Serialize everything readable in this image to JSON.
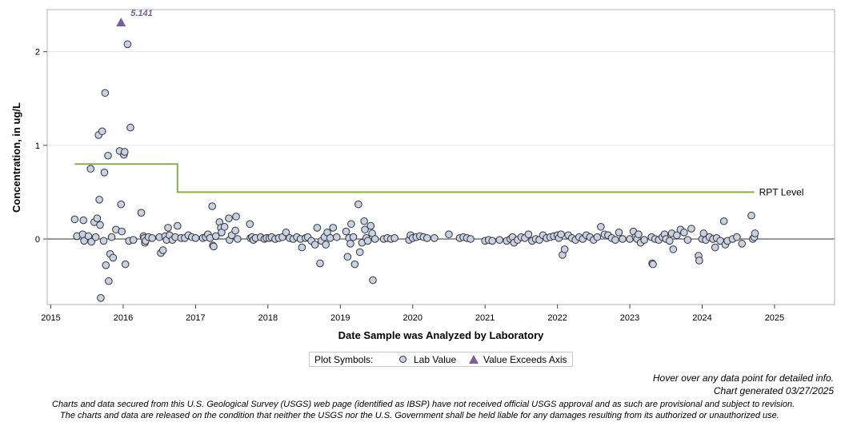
{
  "chart_data": {
    "type": "scatter",
    "xlabel": "Date Sample was Analyzed by Laboratory",
    "ylabel": "Concentration, in ug/L",
    "xlim": [
      2014.95,
      2025.83
    ],
    "ylim": [
      -0.7,
      2.45
    ],
    "x_ticks": [
      "2015",
      "2016",
      "2017",
      "2018",
      "2019",
      "2020",
      "2021",
      "2022",
      "2023",
      "2024",
      "2025"
    ],
    "y_ticks": [
      "0",
      "1",
      "2"
    ],
    "grid": "horizontal",
    "zero_line": true,
    "rpt_level": {
      "label": "RPT Level",
      "segments": [
        {
          "x": [
            2015.33,
            2016.75
          ],
          "y": 0.8
        },
        {
          "x": [
            2016.75,
            2024.72
          ],
          "y": 0.5
        }
      ],
      "color": "#8aad4a"
    },
    "exceeds_axis": [
      {
        "x": 2015.97,
        "y": 5.141,
        "label": "5.141"
      }
    ],
    "series": [
      {
        "name": "Lab Value",
        "color": "#c8d2e4",
        "points": [
          [
            2015.33,
            0.21
          ],
          [
            2015.36,
            0.03
          ],
          [
            2015.44,
            0.05
          ],
          [
            2015.45,
            0.2
          ],
          [
            2015.46,
            -0.02
          ],
          [
            2015.52,
            0.03
          ],
          [
            2015.55,
            0.75
          ],
          [
            2015.56,
            -0.03
          ],
          [
            2015.6,
            0.18
          ],
          [
            2015.62,
            0.02
          ],
          [
            2015.64,
            0.22
          ],
          [
            2015.66,
            1.11
          ],
          [
            2015.67,
            0.42
          ],
          [
            2015.68,
            0.15
          ],
          [
            2015.69,
            -0.63
          ],
          [
            2015.71,
            1.15
          ],
          [
            2015.73,
            -0.02
          ],
          [
            2015.74,
            0.71
          ],
          [
            2015.75,
            1.56
          ],
          [
            2015.76,
            -0.28
          ],
          [
            2015.79,
            0.89
          ],
          [
            2015.8,
            -0.45
          ],
          [
            2015.82,
            -0.16
          ],
          [
            2015.84,
            0.02
          ],
          [
            2015.86,
            -0.2
          ],
          [
            2015.9,
            0.1
          ],
          [
            2015.95,
            0.94
          ],
          [
            2015.97,
            0.37
          ],
          [
            2015.98,
            0.08
          ],
          [
            2016.01,
            0.9
          ],
          [
            2016.02,
            0.93
          ],
          [
            2016.03,
            -0.27
          ],
          [
            2016.06,
            2.08
          ],
          [
            2016.08,
            -0.02
          ],
          [
            2016.1,
            1.19
          ],
          [
            2016.14,
            -0.01
          ],
          [
            2016.25,
            0.28
          ],
          [
            2016.28,
            0.03
          ],
          [
            2016.29,
            0.01
          ],
          [
            2016.3,
            -0.04
          ],
          [
            2016.31,
            -0.02
          ],
          [
            2016.35,
            0.02
          ],
          [
            2016.4,
            0.01
          ],
          [
            2016.5,
            0.02
          ],
          [
            2016.52,
            -0.15
          ],
          [
            2016.55,
            -0.12
          ],
          [
            2016.58,
            0.03
          ],
          [
            2016.6,
            -0.01
          ],
          [
            2016.62,
            0.12
          ],
          [
            2016.64,
            0.04
          ],
          [
            2016.68,
            -0.01
          ],
          [
            2016.72,
            0.02
          ],
          [
            2016.75,
            0.14
          ],
          [
            2016.8,
            0.01
          ],
          [
            2016.85,
            0.01
          ],
          [
            2016.9,
            0.04
          ],
          [
            2016.95,
            0.02
          ],
          [
            2017.0,
            0.01
          ],
          [
            2017.1,
            0.01
          ],
          [
            2017.14,
            0.02
          ],
          [
            2017.17,
            0.05
          ],
          [
            2017.2,
            0.01
          ],
          [
            2017.23,
            0.35
          ],
          [
            2017.24,
            -0.07
          ],
          [
            2017.25,
            -0.08
          ],
          [
            2017.28,
            0.03
          ],
          [
            2017.33,
            0.18
          ],
          [
            2017.35,
            0.12
          ],
          [
            2017.36,
            0.07
          ],
          [
            2017.4,
            0.13
          ],
          [
            2017.46,
            0.22
          ],
          [
            2017.47,
            -0.01
          ],
          [
            2017.5,
            0.04
          ],
          [
            2017.55,
            0.09
          ],
          [
            2017.56,
            0.24
          ],
          [
            2017.58,
            0.0
          ],
          [
            2017.75,
            0.16
          ],
          [
            2017.76,
            0.01
          ],
          [
            2017.78,
            0.02
          ],
          [
            2017.8,
            -0.01
          ],
          [
            2017.83,
            0.01
          ],
          [
            2017.9,
            0.02
          ],
          [
            2017.95,
            0.0
          ],
          [
            2017.98,
            0.01
          ],
          [
            2018.02,
            0.01
          ],
          [
            2018.05,
            0.02
          ],
          [
            2018.1,
            0.0
          ],
          [
            2018.15,
            0.01
          ],
          [
            2018.2,
            0.02
          ],
          [
            2018.25,
            0.07
          ],
          [
            2018.3,
            0.01
          ],
          [
            2018.35,
            0.0
          ],
          [
            2018.4,
            0.02
          ],
          [
            2018.45,
            0.0
          ],
          [
            2018.47,
            -0.09
          ],
          [
            2018.52,
            0.01
          ],
          [
            2018.55,
            0.02
          ],
          [
            2018.6,
            -0.02
          ],
          [
            2018.65,
            -0.06
          ],
          [
            2018.68,
            0.12
          ],
          [
            2018.72,
            -0.26
          ],
          [
            2018.74,
            -0.02
          ],
          [
            2018.78,
            0.02
          ],
          [
            2018.8,
            -0.06
          ],
          [
            2018.82,
            0.07
          ],
          [
            2018.86,
            0.01
          ],
          [
            2018.9,
            0.12
          ],
          [
            2018.95,
            0.02
          ],
          [
            2019.08,
            0.08
          ],
          [
            2019.1,
            -0.19
          ],
          [
            2019.12,
            0.01
          ],
          [
            2019.14,
            -0.05
          ],
          [
            2019.15,
            0.16
          ],
          [
            2019.18,
            0.02
          ],
          [
            2019.2,
            -0.27
          ],
          [
            2019.25,
            0.37
          ],
          [
            2019.27,
            -0.14
          ],
          [
            2019.3,
            -0.04
          ],
          [
            2019.33,
            0.19
          ],
          [
            2019.34,
            0.1
          ],
          [
            2019.36,
            0.01
          ],
          [
            2019.38,
            -0.02
          ],
          [
            2019.42,
            0.14
          ],
          [
            2019.44,
            0.06
          ],
          [
            2019.45,
            -0.44
          ],
          [
            2019.48,
            0.0
          ],
          [
            2019.6,
            0.0
          ],
          [
            2019.65,
            0.01
          ],
          [
            2019.7,
            0.0
          ],
          [
            2019.75,
            0.01
          ],
          [
            2019.95,
            -0.01
          ],
          [
            2019.97,
            0.04
          ],
          [
            2020.0,
            0.01
          ],
          [
            2020.05,
            0.02
          ],
          [
            2020.1,
            0.03
          ],
          [
            2020.15,
            0.02
          ],
          [
            2020.2,
            0.01
          ],
          [
            2020.3,
            0.01
          ],
          [
            2020.5,
            0.05
          ],
          [
            2020.65,
            0.01
          ],
          [
            2020.7,
            0.02
          ],
          [
            2020.75,
            0.01
          ],
          [
            2020.8,
            0.0
          ],
          [
            2021.0,
            -0.02
          ],
          [
            2021.05,
            -0.01
          ],
          [
            2021.1,
            -0.02
          ],
          [
            2021.2,
            -0.01
          ],
          [
            2021.3,
            -0.02
          ],
          [
            2021.35,
            0.0
          ],
          [
            2021.38,
            0.02
          ],
          [
            2021.4,
            -0.04
          ],
          [
            2021.45,
            -0.01
          ],
          [
            2021.5,
            0.02
          ],
          [
            2021.55,
            0.01
          ],
          [
            2021.6,
            0.05
          ],
          [
            2021.65,
            -0.02
          ],
          [
            2021.7,
            0.0
          ],
          [
            2021.75,
            -0.01
          ],
          [
            2021.8,
            0.04
          ],
          [
            2021.85,
            0.01
          ],
          [
            2021.9,
            0.02
          ],
          [
            2021.95,
            0.03
          ],
          [
            2022.0,
            0.04
          ],
          [
            2022.02,
            0.01
          ],
          [
            2022.05,
            0.05
          ],
          [
            2022.07,
            -0.17
          ],
          [
            2022.1,
            -0.11
          ],
          [
            2022.15,
            0.04
          ],
          [
            2022.2,
            0.01
          ],
          [
            2022.25,
            -0.01
          ],
          [
            2022.3,
            0.02
          ],
          [
            2022.35,
            0.0
          ],
          [
            2022.4,
            0.04
          ],
          [
            2022.45,
            0.02
          ],
          [
            2022.5,
            -0.01
          ],
          [
            2022.55,
            0.02
          ],
          [
            2022.6,
            0.13
          ],
          [
            2022.65,
            0.05
          ],
          [
            2022.7,
            0.04
          ],
          [
            2022.75,
            0.01
          ],
          [
            2022.8,
            -0.01
          ],
          [
            2022.85,
            0.07
          ],
          [
            2022.9,
            0.0
          ],
          [
            2023.0,
            0.0
          ],
          [
            2023.05,
            0.08
          ],
          [
            2023.08,
            0.02
          ],
          [
            2023.1,
            0.0
          ],
          [
            2023.12,
            0.05
          ],
          [
            2023.15,
            -0.04
          ],
          [
            2023.2,
            -0.01
          ],
          [
            2023.3,
            0.02
          ],
          [
            2023.31,
            -0.26
          ],
          [
            2023.32,
            -0.27
          ],
          [
            2023.35,
            0.0
          ],
          [
            2023.4,
            -0.01
          ],
          [
            2023.45,
            0.02
          ],
          [
            2023.48,
            0.05
          ],
          [
            2023.5,
            0.0
          ],
          [
            2023.55,
            -0.02
          ],
          [
            2023.58,
            0.06
          ],
          [
            2023.6,
            -0.11
          ],
          [
            2023.65,
            0.04
          ],
          [
            2023.7,
            0.1
          ],
          [
            2023.75,
            0.07
          ],
          [
            2023.8,
            -0.01
          ],
          [
            2023.85,
            0.11
          ],
          [
            2023.95,
            -0.18
          ],
          [
            2023.96,
            -0.23
          ],
          [
            2024.0,
            0.0
          ],
          [
            2024.02,
            0.06
          ],
          [
            2024.05,
            -0.01
          ],
          [
            2024.1,
            0.02
          ],
          [
            2024.15,
            0.0
          ],
          [
            2024.18,
            -0.09
          ],
          [
            2024.2,
            0.01
          ],
          [
            2024.25,
            -0.02
          ],
          [
            2024.3,
            0.19
          ],
          [
            2024.32,
            -0.06
          ],
          [
            2024.35,
            -0.02
          ],
          [
            2024.42,
            0.0
          ],
          [
            2024.48,
            0.02
          ],
          [
            2024.55,
            -0.05
          ],
          [
            2024.68,
            0.25
          ],
          [
            2024.7,
            0.0
          ],
          [
            2024.72,
            0.02
          ],
          [
            2024.73,
            0.06
          ]
        ]
      }
    ]
  },
  "legend": {
    "title": "Plot Symbols:",
    "items": [
      {
        "label": "Lab Value",
        "symbol": "circle"
      },
      {
        "label": "Value Exceeds Axis",
        "symbol": "triangle"
      }
    ]
  },
  "notes": {
    "hover": "Hover over any data point for detailed info.",
    "generated": "Chart generated 03/27/2025",
    "disclaimer_1": "Charts and data secured from this U.S. Geological Survey (USGS) web page (identified as IBSP) have not received official USGS approval and as such are provisional and subject to revision.",
    "disclaimer_2": "The charts and data are released on the condition that neither the USGS nor the U.S. Government shall be held liable for any damages resulting from its authorized or unauthorized use."
  },
  "colors": {
    "marker_fill": "#c8d2e4",
    "exceeds_marker": "#7a5ea0",
    "rpt_line": "#8aad4a"
  }
}
